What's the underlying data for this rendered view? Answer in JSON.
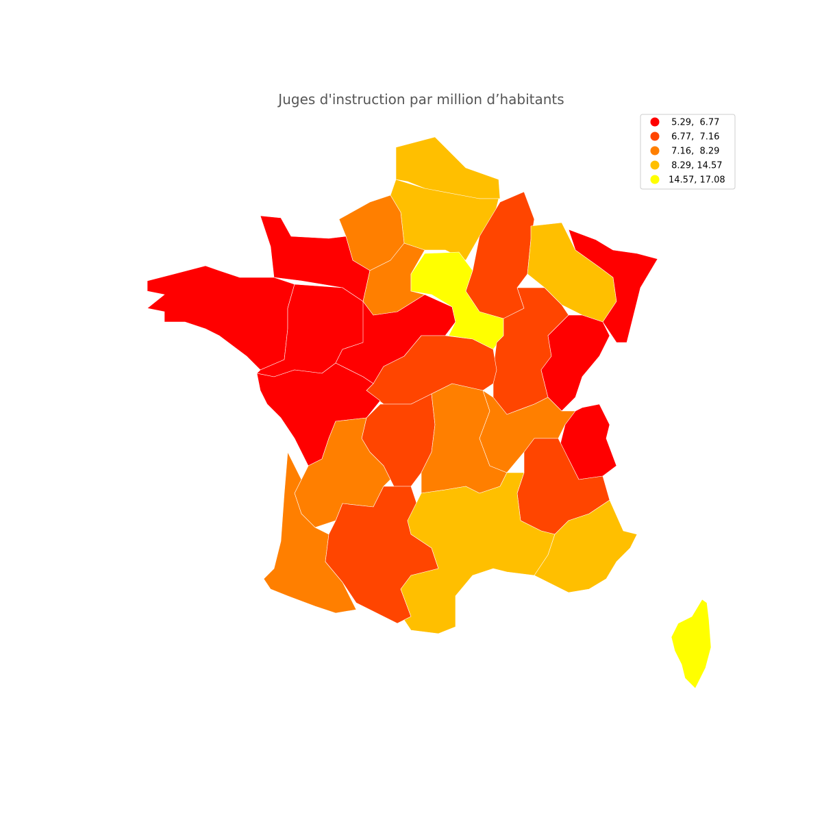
{
  "map": {
    "title": "Juges d'instruction par million d’habitants",
    "legend": {
      "entries": [
        {
          "label": " 5.29,  6.77",
          "color": "#ff0000"
        },
        {
          "label": " 6.77,  7.16",
          "color": "#ff4500"
        },
        {
          "label": " 7.16,  8.29",
          "color": "#ff7f00"
        },
        {
          "label": " 8.29, 14.57",
          "color": "#ffbf00"
        },
        {
          "label": "14.57, 17.08",
          "color": "#ffff00"
        }
      ]
    }
  }
}
